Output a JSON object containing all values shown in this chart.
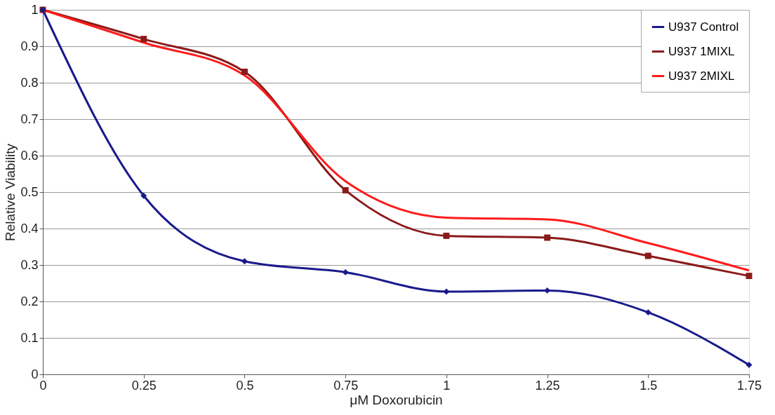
{
  "chart_data": {
    "type": "line",
    "xlabel": "μM Doxorubicin",
    "ylabel": "Relative  Viability",
    "x": [
      0,
      0.25,
      0.5,
      0.75,
      1,
      1.25,
      1.5,
      1.75
    ],
    "xlim": [
      0,
      1.75
    ],
    "xticks": [
      0,
      0.25,
      0.5,
      0.75,
      1,
      1.25,
      1.5,
      1.75
    ],
    "ylim": [
      0,
      1
    ],
    "yticks": [
      0,
      0.1,
      0.2,
      0.3,
      0.4,
      0.5,
      0.6,
      0.7,
      0.8,
      0.9,
      1
    ],
    "grid": "y",
    "legend": "top right",
    "line_style": "solid",
    "series": [
      {
        "name": "U937 Control",
        "color": "#1a1a8c",
        "marker": "diamond",
        "values": [
          1,
          0.49,
          0.31,
          0.28,
          0.227,
          0.23,
          0.17,
          0.026
        ]
      },
      {
        "name": "U937 1MIXL",
        "color": "#8b1a1a",
        "marker": "square",
        "values": [
          1,
          0.92,
          0.83,
          0.505,
          0.38,
          0.375,
          0.325,
          0.27
        ]
      },
      {
        "name": "U937 2MIXL",
        "color": "#ff1a1a",
        "marker": "none",
        "values": [
          1,
          0.91,
          0.82,
          0.53,
          0.43,
          0.425,
          0.36,
          0.285
        ]
      }
    ]
  }
}
